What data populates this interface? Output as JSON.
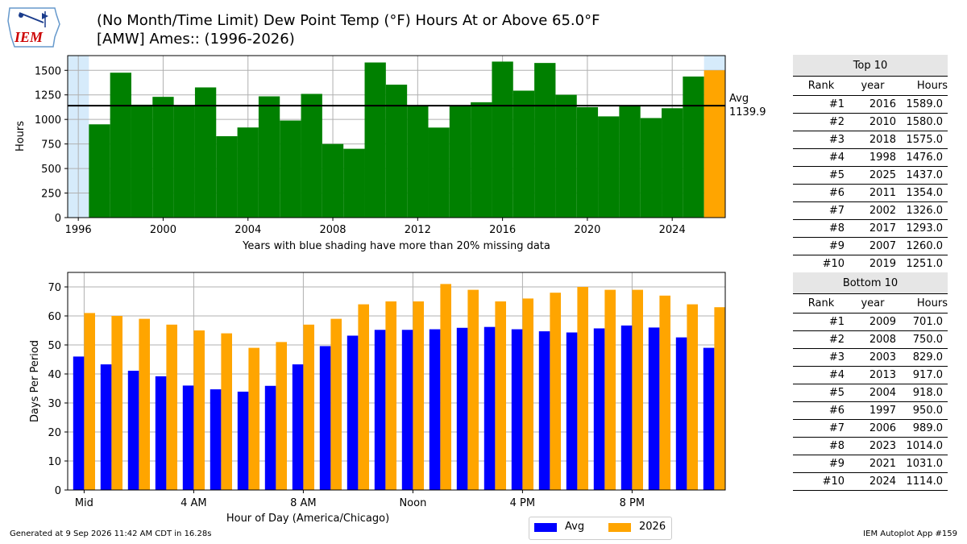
{
  "title_line1": "(No Month/Time Limit) Dew Point Temp (°F) Hours At or Above 65.0°F",
  "title_line2": "[AMW] Ames:: (1996-2026)",
  "logo_text": "IEM",
  "colors": {
    "annual": "#008000",
    "current": "#ffa500",
    "avg_bar": "#0000ff",
    "missing_shade": "#d6ebfb"
  },
  "chart_data": [
    {
      "type": "bar",
      "xlabel": "Years with blue shading have more than 20% missing data",
      "ylabel": "Hours",
      "xlim": [
        1995.5,
        2026.5
      ],
      "ylim": [
        0,
        1650
      ],
      "yticks": [
        0,
        250,
        500,
        750,
        1000,
        1250,
        1500
      ],
      "xticks": [
        1996,
        2000,
        2004,
        2008,
        2012,
        2016,
        2020,
        2024
      ],
      "grid": true,
      "x": [
        1997,
        1998,
        1999,
        2000,
        2001,
        2002,
        2003,
        2004,
        2005,
        2006,
        2007,
        2008,
        2009,
        2010,
        2011,
        2012,
        2013,
        2014,
        2015,
        2016,
        2017,
        2018,
        2019,
        2020,
        2021,
        2022,
        2023,
        2024,
        2025,
        2026
      ],
      "values": [
        950,
        1476,
        1150,
        1230,
        1140,
        1326,
        829,
        918,
        1235,
        989,
        1260,
        750,
        701,
        1580,
        1354,
        1145,
        917,
        1140,
        1175,
        1589,
        1293,
        1575,
        1251,
        1125,
        1031,
        1140,
        1014,
        1114,
        1437,
        1500
      ],
      "highlight_year": 2026,
      "missing_data_years": [
        1996,
        2026
      ],
      "average": 1139.9,
      "avg_label": "Avg",
      "avg_value_label": "1139.9"
    },
    {
      "type": "bar",
      "xlabel": "Hour of Day (America/Chicago)",
      "ylabel": "Days Per Period",
      "ylim": [
        0,
        75
      ],
      "yticks": [
        0,
        10,
        20,
        30,
        40,
        50,
        60,
        70
      ],
      "grid": true,
      "xtick_positions": [
        0,
        4,
        8,
        12,
        16,
        20
      ],
      "xtick_labels": [
        "Mid",
        "4 AM",
        "8 AM",
        "Noon",
        "4 PM",
        "8 PM"
      ],
      "categories": [
        0,
        1,
        2,
        3,
        4,
        5,
        6,
        7,
        8,
        9,
        10,
        11,
        12,
        13,
        14,
        15,
        16,
        17,
        18,
        19,
        20,
        21,
        22,
        23
      ],
      "series": [
        {
          "name": "Avg",
          "values": [
            46.0,
            43.3,
            41.1,
            39.2,
            36.0,
            34.7,
            33.9,
            35.9,
            43.3,
            49.6,
            53.2,
            55.2,
            55.2,
            55.4,
            55.9,
            56.2,
            55.4,
            54.7,
            54.3,
            55.7,
            56.7,
            56.0,
            52.6,
            49.0
          ]
        },
        {
          "name": "2026",
          "values": [
            61,
            60,
            59,
            57,
            55,
            54,
            49,
            51,
            57,
            59,
            64,
            65,
            65,
            71,
            69,
            65,
            66,
            68,
            70,
            69,
            69,
            67,
            64,
            63
          ]
        }
      ],
      "legend_position": "bottom-center"
    }
  ],
  "top10": {
    "caption": "Top 10",
    "headers": [
      "Rank",
      "year",
      "Hours"
    ],
    "rows": [
      [
        "#1",
        "2016",
        "1589.0"
      ],
      [
        "#2",
        "2010",
        "1580.0"
      ],
      [
        "#3",
        "2018",
        "1575.0"
      ],
      [
        "#4",
        "1998",
        "1476.0"
      ],
      [
        "#5",
        "2025",
        "1437.0"
      ],
      [
        "#6",
        "2011",
        "1354.0"
      ],
      [
        "#7",
        "2002",
        "1326.0"
      ],
      [
        "#8",
        "2017",
        "1293.0"
      ],
      [
        "#9",
        "2007",
        "1260.0"
      ],
      [
        "#10",
        "2019",
        "1251.0"
      ]
    ]
  },
  "bottom10": {
    "caption": "Bottom 10",
    "headers": [
      "Rank",
      "year",
      "Hours"
    ],
    "rows": [
      [
        "#1",
        "2009",
        "701.0"
      ],
      [
        "#2",
        "2008",
        "750.0"
      ],
      [
        "#3",
        "2003",
        "829.0"
      ],
      [
        "#4",
        "2013",
        "917.0"
      ],
      [
        "#5",
        "2004",
        "918.0"
      ],
      [
        "#6",
        "1997",
        "950.0"
      ],
      [
        "#7",
        "2006",
        "989.0"
      ],
      [
        "#8",
        "2023",
        "1014.0"
      ],
      [
        "#9",
        "2021",
        "1031.0"
      ],
      [
        "#10",
        "2024",
        "1114.0"
      ]
    ]
  },
  "footer_left": "Generated at 9 Sep 2026 11:42 AM CDT in 16.28s",
  "footer_right": "IEM Autoplot App #159"
}
